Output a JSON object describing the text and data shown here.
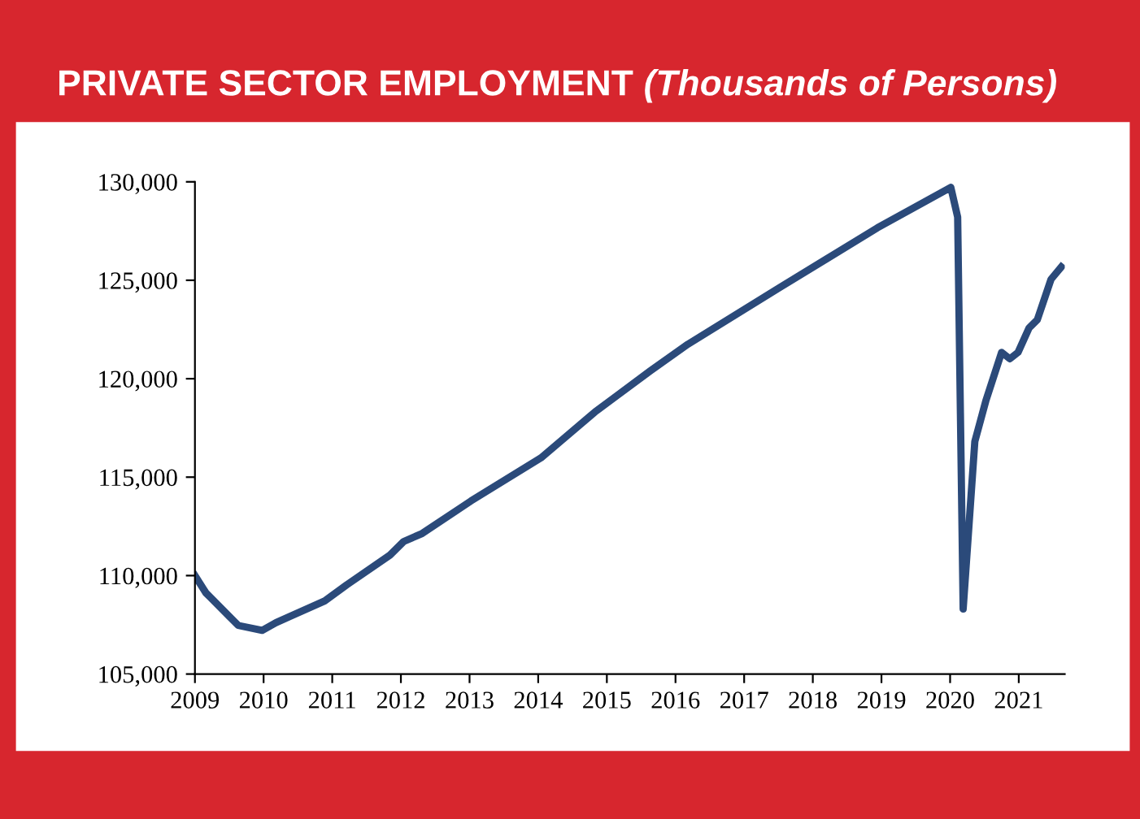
{
  "chart_data": {
    "type": "line",
    "title": "PRIVATE SECTOR EMPLOYMENT",
    "subtitle": "(Thousands of Persons)",
    "x": [
      2009.0,
      2009.16,
      2009.63,
      2009.98,
      2010.18,
      2010.89,
      2011.21,
      2011.84,
      2012.04,
      2012.31,
      2013.02,
      2014.04,
      2014.83,
      2015.15,
      2015.63,
      2016.18,
      2017.52,
      2018.94,
      2020.01,
      2020.11,
      2020.19,
      2020.36,
      2020.52,
      2020.75,
      2020.87,
      2020.99,
      2021.15,
      2021.27,
      2021.47,
      2021.62
    ],
    "series": [
      {
        "color": "#2b4a7a",
        "values": [
          110000,
          109120,
          107470,
          107220,
          107610,
          108710,
          109530,
          111040,
          111730,
          112140,
          113790,
          115980,
          118320,
          119150,
          120390,
          121750,
          124640,
          127660,
          129720,
          128210,
          108300,
          116810,
          118870,
          121340,
          121010,
          121340,
          122580,
          122990,
          125050,
          125680
        ]
      }
    ],
    "xlim": [
      2009,
      2021.67
    ],
    "xticks": [
      2009,
      2010,
      2011,
      2012,
      2013,
      2014,
      2015,
      2016,
      2017,
      2018,
      2019,
      2020,
      2021
    ],
    "ylim": [
      105000,
      130000
    ],
    "yticks": [
      {
        "value": 105000,
        "label": "105,000"
      },
      {
        "value": 110000,
        "label": "110,000"
      },
      {
        "value": 115000,
        "label": "115,000"
      },
      {
        "value": 120000,
        "label": "120,000"
      },
      {
        "value": 125000,
        "label": "125,000"
      },
      {
        "value": 130000,
        "label": "130,000"
      }
    ],
    "grid": false,
    "legend": false,
    "marker": "none",
    "line_style": "solid"
  }
}
